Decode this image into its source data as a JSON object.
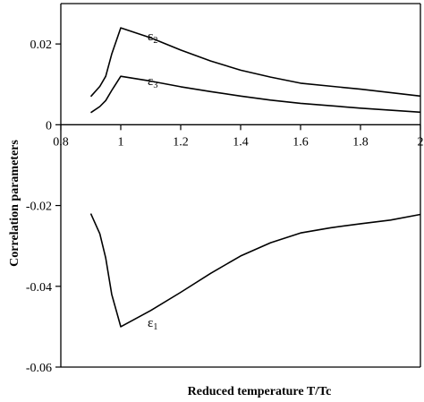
{
  "chart_data": {
    "type": "line",
    "title": "",
    "xlabel": "Reduced temperature T/Tc",
    "ylabel": "Correlation parameters",
    "xlim": [
      0.8,
      2.0
    ],
    "ylim": [
      -0.06,
      0.03
    ],
    "grid": false,
    "legend": "none",
    "x_ticks": [
      0.8,
      1.0,
      1.2,
      1.4,
      1.6,
      1.8,
      2.0
    ],
    "x_tick_labels": [
      "0.8",
      "1",
      "1.2",
      "1.4",
      "1.6",
      "1.8",
      "2"
    ],
    "y_ticks": [
      0.02,
      0,
      -0.02,
      -0.04,
      -0.06
    ],
    "y_tick_labels": [
      "0.02",
      "0",
      "-0.02",
      "-0.04",
      "-0.06"
    ],
    "series": [
      {
        "name": "ε2",
        "label_base": "ε",
        "label_sub": "2",
        "x": [
          0.9,
          0.93,
          0.95,
          0.97,
          1.0,
          1.1,
          1.2,
          1.3,
          1.4,
          1.5,
          1.6,
          1.8,
          2.0
        ],
        "y": [
          0.007,
          0.0095,
          0.012,
          0.0175,
          0.024,
          0.0215,
          0.0185,
          0.0158,
          0.0135,
          0.0118,
          0.0103,
          0.0088,
          0.0071
        ]
      },
      {
        "name": "ε3",
        "label_base": "ε",
        "label_sub": "3",
        "x": [
          0.9,
          0.93,
          0.95,
          0.97,
          1.0,
          1.1,
          1.2,
          1.3,
          1.4,
          1.5,
          1.6,
          1.8,
          2.0
        ],
        "y": [
          0.003,
          0.0045,
          0.006,
          0.0085,
          0.012,
          0.0108,
          0.0094,
          0.0082,
          0.0071,
          0.0061,
          0.0053,
          0.0041,
          0.0031
        ]
      },
      {
        "name": "ε1",
        "label_base": "ε",
        "label_sub": "1",
        "x": [
          0.9,
          0.93,
          0.95,
          0.97,
          1.0,
          1.1,
          1.2,
          1.3,
          1.4,
          1.5,
          1.6,
          1.7,
          1.8,
          1.9,
          2.0
        ],
        "y": [
          -0.022,
          -0.027,
          -0.033,
          -0.042,
          -0.05,
          -0.046,
          -0.0415,
          -0.0368,
          -0.0325,
          -0.0292,
          -0.0268,
          -0.0255,
          -0.0245,
          -0.0236,
          -0.0222
        ]
      }
    ]
  }
}
